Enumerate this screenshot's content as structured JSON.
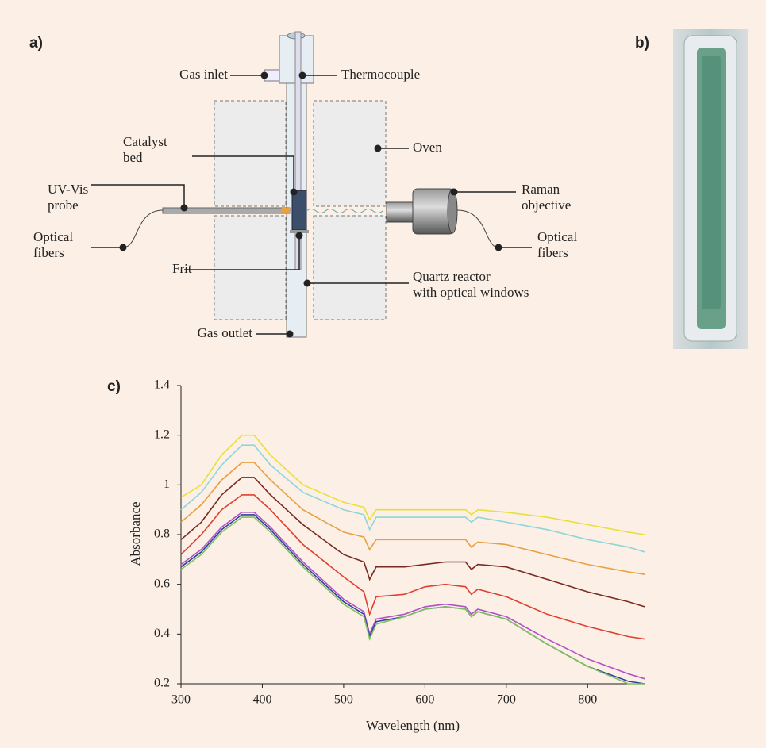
{
  "panel_labels": {
    "a": "a)",
    "b": "b)"
  },
  "diagram": {
    "labels": {
      "gas_inlet": [
        "Gas inlet"
      ],
      "thermocouple": [
        "Thermocouple"
      ],
      "catalyst_bed": [
        "Catalyst",
        "bed"
      ],
      "oven": [
        "Oven"
      ],
      "uv_vis_probe": [
        "UV-Vis",
        "probe"
      ],
      "raman_objective": [
        "Raman",
        "objective"
      ],
      "optical_fibers_left": [
        "Optical",
        "fibers"
      ],
      "optical_fibers_right": [
        "Optical",
        "fibers"
      ],
      "frit": [
        "Frit"
      ],
      "quartz_reactor": [
        "Quartz reactor",
        "with optical windows"
      ],
      "gas_outlet": [
        "Gas outlet"
      ]
    }
  },
  "chart_data": {
    "type": "line",
    "panel_label": "c)",
    "xlabel": "Wavelength (nm)",
    "ylabel": "Absorbance",
    "x": [
      300,
      325,
      350,
      375,
      390,
      410,
      450,
      500,
      525,
      532,
      540,
      575,
      600,
      625,
      650,
      657,
      665,
      700,
      750,
      800,
      850,
      870
    ],
    "xlim": [
      300,
      870
    ],
    "ylim": [
      0.2,
      1.4
    ],
    "xticks": [
      300,
      400,
      500,
      600,
      700,
      800
    ],
    "yticks": [
      0.2,
      0.4,
      0.6,
      0.8,
      1,
      1.2,
      1.4
    ],
    "series": [
      {
        "color": "#e8e03a",
        "values": [
          0.95,
          1.0,
          1.12,
          1.2,
          1.2,
          1.12,
          1.0,
          0.93,
          0.91,
          0.86,
          0.9,
          0.9,
          0.9,
          0.9,
          0.9,
          0.88,
          0.9,
          0.89,
          0.87,
          0.84,
          0.81,
          0.8
        ]
      },
      {
        "color": "#8fd6d8",
        "values": [
          0.9,
          0.97,
          1.08,
          1.16,
          1.16,
          1.08,
          0.97,
          0.9,
          0.88,
          0.82,
          0.87,
          0.87,
          0.87,
          0.87,
          0.87,
          0.85,
          0.87,
          0.85,
          0.82,
          0.78,
          0.75,
          0.73
        ]
      },
      {
        "color": "#e8a040",
        "values": [
          0.85,
          0.92,
          1.02,
          1.09,
          1.09,
          1.02,
          0.9,
          0.81,
          0.79,
          0.74,
          0.78,
          0.78,
          0.78,
          0.78,
          0.78,
          0.75,
          0.77,
          0.76,
          0.72,
          0.68,
          0.65,
          0.64
        ]
      },
      {
        "color": "#7a2a20",
        "values": [
          0.78,
          0.85,
          0.96,
          1.03,
          1.03,
          0.96,
          0.84,
          0.72,
          0.69,
          0.62,
          0.67,
          0.67,
          0.68,
          0.69,
          0.69,
          0.66,
          0.68,
          0.67,
          0.62,
          0.57,
          0.53,
          0.51
        ]
      },
      {
        "color": "#e04030",
        "values": [
          0.72,
          0.8,
          0.9,
          0.96,
          0.96,
          0.9,
          0.76,
          0.63,
          0.57,
          0.48,
          0.55,
          0.56,
          0.59,
          0.6,
          0.59,
          0.56,
          0.58,
          0.55,
          0.48,
          0.43,
          0.39,
          0.38
        ]
      },
      {
        "color": "#b050c8",
        "values": [
          0.68,
          0.74,
          0.83,
          0.89,
          0.89,
          0.83,
          0.69,
          0.54,
          0.49,
          0.4,
          0.46,
          0.48,
          0.51,
          0.52,
          0.51,
          0.48,
          0.5,
          0.47,
          0.38,
          0.3,
          0.24,
          0.22
        ]
      },
      {
        "color": "#3040a0",
        "values": [
          0.67,
          0.73,
          0.82,
          0.88,
          0.88,
          0.82,
          0.68,
          0.53,
          0.48,
          0.39,
          0.45,
          0.47,
          0.5,
          0.51,
          0.5,
          0.47,
          0.49,
          0.46,
          0.36,
          0.27,
          0.21,
          0.2
        ]
      },
      {
        "color": "#80c060",
        "values": [
          0.66,
          0.72,
          0.81,
          0.87,
          0.87,
          0.81,
          0.67,
          0.52,
          0.47,
          0.38,
          0.44,
          0.47,
          0.5,
          0.51,
          0.5,
          0.47,
          0.49,
          0.46,
          0.36,
          0.27,
          0.2,
          0.2
        ]
      }
    ]
  }
}
